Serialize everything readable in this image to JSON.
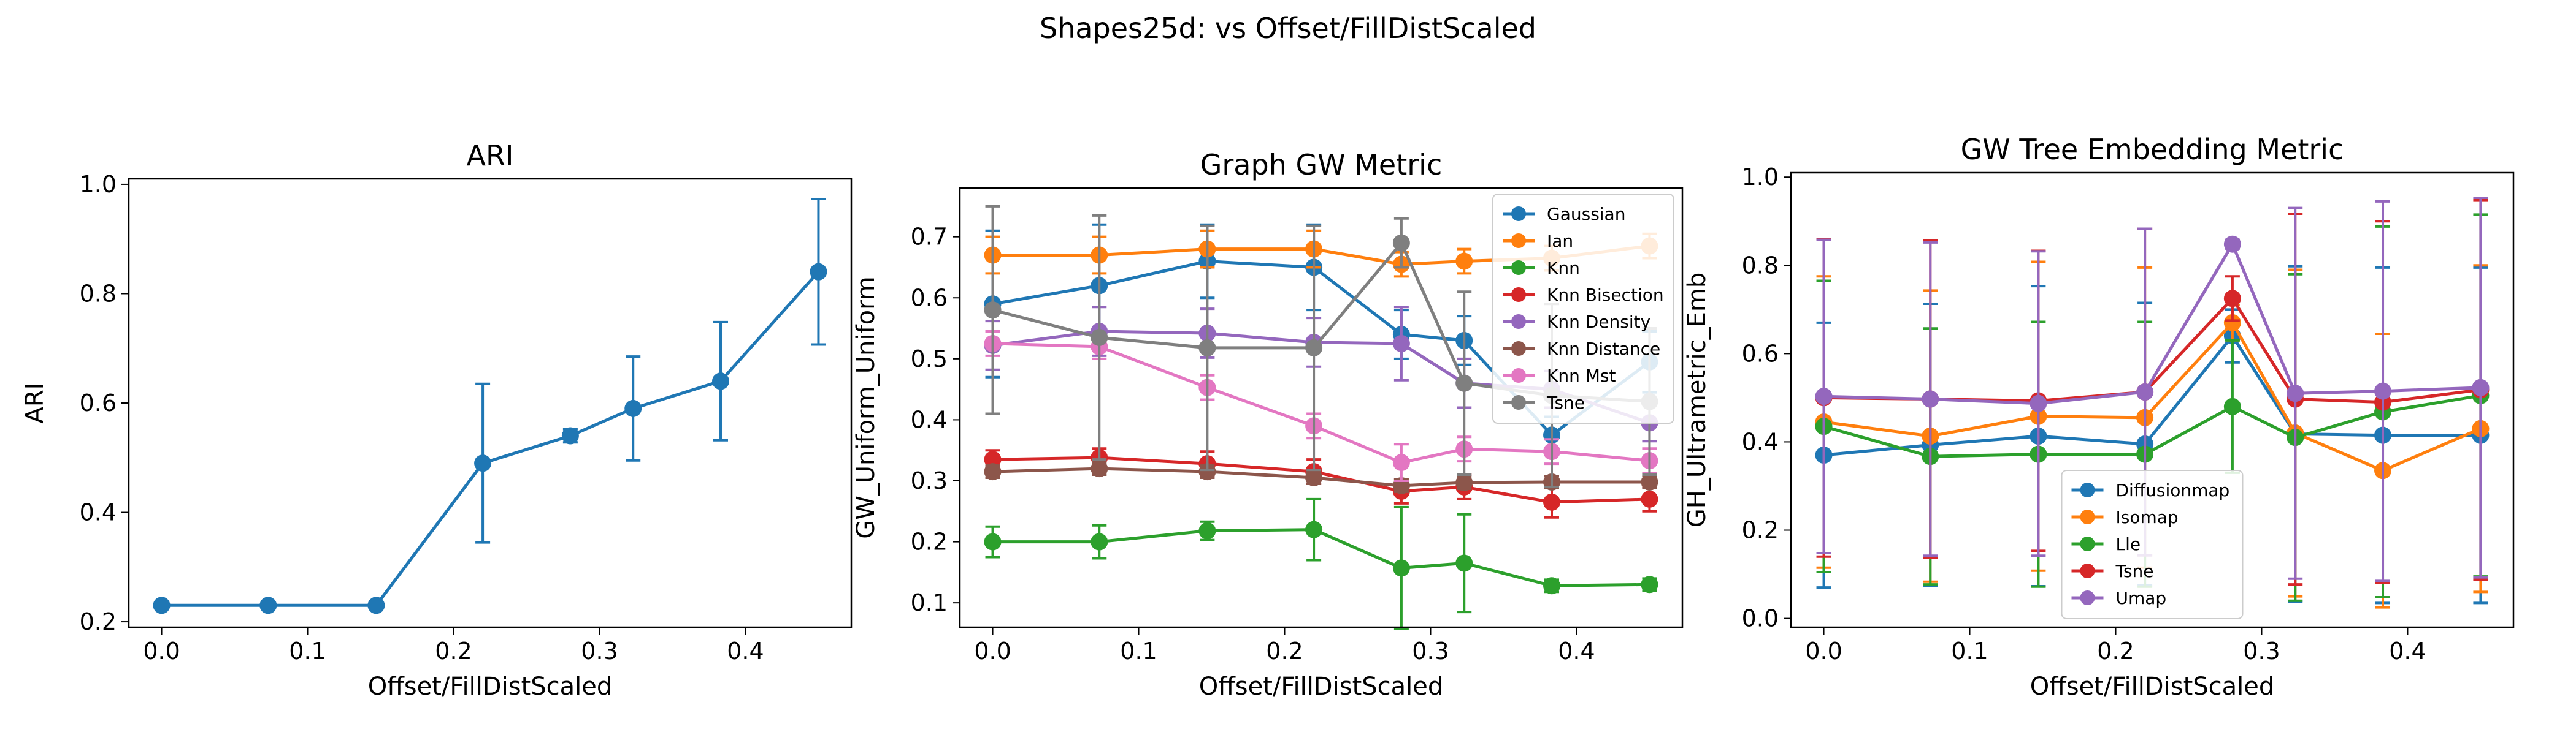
{
  "figure": {
    "suptitle": "Shapes25d: vs Offset/FillDistScaled"
  },
  "chart_data": [
    {
      "type": "line",
      "title": "ARI",
      "xlabel": "Offset/FillDistScaled",
      "ylabel": "ARI",
      "xlim": [
        -0.0225,
        0.4725
      ],
      "ylim": [
        0.19,
        1.01
      ],
      "xticks": [
        0.0,
        0.1,
        0.2,
        0.3,
        0.4
      ],
      "xtick_labels": [
        "0.0",
        "0.1",
        "0.2",
        "0.3",
        "0.4"
      ],
      "yticks": [
        0.2,
        0.4,
        0.6,
        0.8,
        1.0
      ],
      "ytick_labels": [
        "0.2",
        "0.4",
        "0.6",
        "0.8",
        "1.0"
      ],
      "grid": false,
      "legend": null,
      "x": [
        0.0,
        0.073,
        0.147,
        0.22,
        0.28,
        0.323,
        0.383,
        0.45
      ],
      "series": [
        {
          "color": "#1f77b4",
          "marker": "circle",
          "values": [
            0.23,
            0.23,
            0.23,
            0.49,
            0.54,
            0.59,
            0.64,
            0.84
          ],
          "errors": [
            0,
            0,
            0,
            0.145,
            0.012,
            0.095,
            0.108,
            0.133
          ]
        }
      ]
    },
    {
      "type": "line",
      "title": "Graph GW Metric",
      "xlabel": "Offset/FillDistScaled",
      "ylabel": "GW_Uniform_Uniform",
      "xlim": [
        -0.0225,
        0.4725
      ],
      "ylim": [
        0.06,
        0.78
      ],
      "xticks": [
        0.0,
        0.1,
        0.2,
        0.3,
        0.4
      ],
      "xtick_labels": [
        "0.0",
        "0.1",
        "0.2",
        "0.3",
        "0.4"
      ],
      "yticks": [
        0.1,
        0.2,
        0.3,
        0.4,
        0.5,
        0.6,
        0.7
      ],
      "ytick_labels": [
        "0.1",
        "0.2",
        "0.3",
        "0.4",
        "0.5",
        "0.6",
        "0.7"
      ],
      "grid": false,
      "legend": "top-right",
      "x": [
        0.0,
        0.073,
        0.147,
        0.22,
        0.28,
        0.323,
        0.383,
        0.45
      ],
      "series": [
        {
          "name": "Gaussian",
          "color": "#1f77b4",
          "marker": "circle",
          "values": [
            0.59,
            0.62,
            0.66,
            0.65,
            0.54,
            0.53,
            0.375,
            0.495
          ],
          "errors": [
            0.12,
            0.1,
            0.06,
            0.07,
            0.04,
            0.04,
            0.03,
            0.05
          ]
        },
        {
          "name": "Ian",
          "color": "#ff7f0e",
          "marker": "circle",
          "values": [
            0.67,
            0.67,
            0.68,
            0.68,
            0.655,
            0.66,
            0.665,
            0.685
          ],
          "errors": [
            0.03,
            0.03,
            0.03,
            0.03,
            0.02,
            0.02,
            0.02,
            0.02
          ]
        },
        {
          "name": "Knn",
          "color": "#2ca02c",
          "marker": "circle",
          "values": [
            0.2,
            0.2,
            0.218,
            0.22,
            0.157,
            0.165,
            0.128,
            0.13
          ],
          "errors": [
            0.025,
            0.027,
            0.015,
            0.05,
            0.1,
            0.08,
            0.01,
            0.01
          ]
        },
        {
          "name": "Knn Bisection",
          "color": "#d62728",
          "marker": "circle",
          "values": [
            0.335,
            0.338,
            0.328,
            0.315,
            0.283,
            0.29,
            0.265,
            0.27
          ],
          "errors": [
            0.015,
            0.015,
            0.02,
            0.02,
            0.02,
            0.02,
            0.025,
            0.02
          ]
        },
        {
          "name": "Knn Density",
          "color": "#9467bd",
          "marker": "circle",
          "values": [
            0.522,
            0.545,
            0.542,
            0.527,
            0.525,
            0.46,
            0.45,
            0.395
          ],
          "errors": [
            0.04,
            0.04,
            0.04,
            0.04,
            0.06,
            0.04,
            0.03,
            0.03
          ]
        },
        {
          "name": "Knn Distance",
          "color": "#8c564b",
          "marker": "circle",
          "values": [
            0.315,
            0.32,
            0.315,
            0.305,
            0.292,
            0.297,
            0.298,
            0.298
          ],
          "errors": [
            0.01,
            0.01,
            0.01,
            0.01,
            0.01,
            0.01,
            0.01,
            0.01
          ]
        },
        {
          "name": "Knn Mst",
          "color": "#e377c2",
          "marker": "circle",
          "values": [
            0.525,
            0.52,
            0.453,
            0.39,
            0.33,
            0.352,
            0.348,
            0.333
          ],
          "errors": [
            0.02,
            0.02,
            0.02,
            0.02,
            0.03,
            0.02,
            0.02,
            0.02
          ]
        },
        {
          "name": "Tsne",
          "color": "#7f7f7f",
          "marker": "circle",
          "values": [
            0.58,
            0.535,
            0.518,
            0.518,
            0.69,
            0.46,
            0.44,
            0.43
          ],
          "errors": [
            0.17,
            0.2,
            0.2,
            0.2,
            0.04,
            0.15,
            0.15,
            0.12
          ]
        }
      ]
    },
    {
      "type": "line",
      "title": "GW Tree Embedding Metric",
      "xlabel": "Offset/FillDistScaled",
      "ylabel": "GH_Ultrametric_Emb",
      "xlim": [
        -0.0225,
        0.4725
      ],
      "ylim": [
        -0.02,
        1.01
      ],
      "xticks": [
        0.0,
        0.1,
        0.2,
        0.3,
        0.4
      ],
      "xtick_labels": [
        "0.0",
        "0.1",
        "0.2",
        "0.3",
        "0.4"
      ],
      "yticks": [
        0.0,
        0.2,
        0.4,
        0.6,
        0.8,
        1.0
      ],
      "ytick_labels": [
        "0.0",
        "0.2",
        "0.4",
        "0.6",
        "0.8",
        "1.0"
      ],
      "grid": false,
      "legend": "lower-center",
      "x": [
        0.0,
        0.073,
        0.147,
        0.22,
        0.28,
        0.323,
        0.383,
        0.45
      ],
      "series": [
        {
          "name": "Diffusionmap",
          "color": "#1f77b4",
          "marker": "circle",
          "values": [
            0.37,
            0.393,
            0.413,
            0.395,
            0.64,
            0.418,
            0.415,
            0.415
          ],
          "errors": [
            0.3,
            0.32,
            0.34,
            0.32,
            0.06,
            0.38,
            0.38,
            0.38
          ]
        },
        {
          "name": "Isomap",
          "color": "#ff7f0e",
          "marker": "circle",
          "values": [
            0.445,
            0.413,
            0.458,
            0.455,
            0.67,
            0.42,
            0.335,
            0.43
          ],
          "errors": [
            0.33,
            0.33,
            0.35,
            0.34,
            0.04,
            0.37,
            0.31,
            0.37
          ]
        },
        {
          "name": "Lle",
          "color": "#2ca02c",
          "marker": "circle",
          "values": [
            0.435,
            0.367,
            0.372,
            0.372,
            0.48,
            0.41,
            0.468,
            0.505
          ],
          "errors": [
            0.33,
            0.29,
            0.3,
            0.3,
            0.15,
            0.37,
            0.42,
            0.41
          ]
        },
        {
          "name": "Tsne",
          "color": "#d62728",
          "marker": "circle",
          "values": [
            0.5,
            0.497,
            0.493,
            0.513,
            0.725,
            0.497,
            0.49,
            0.518
          ],
          "errors": [
            0.36,
            0.36,
            0.34,
            0.37,
            0.05,
            0.42,
            0.41,
            0.43
          ]
        },
        {
          "name": "Umap",
          "color": "#9467bd",
          "marker": "circle",
          "values": [
            0.503,
            0.497,
            0.487,
            0.513,
            0.848,
            0.51,
            0.515,
            0.523
          ],
          "errors": [
            0.355,
            0.355,
            0.345,
            0.37,
            0.01,
            0.42,
            0.43,
            0.43
          ]
        }
      ]
    }
  ]
}
